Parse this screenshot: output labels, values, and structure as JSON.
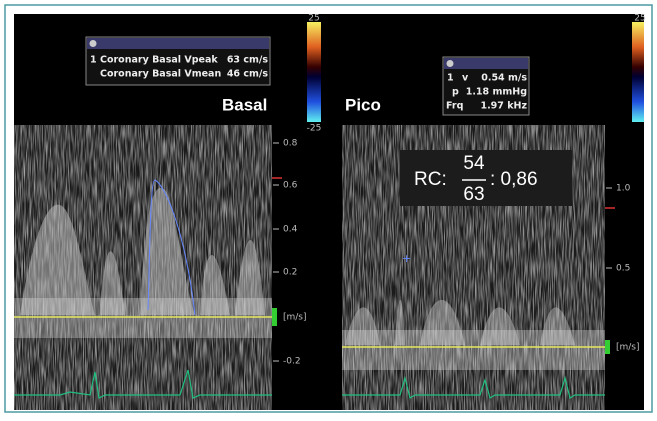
{
  "left": {
    "label": "Basal",
    "colorbar_top": "25",
    "colorbar_bottom": "-25",
    "info": {
      "index": "1",
      "rows": [
        {
          "label": "Coronary Basal Vpeak",
          "value": "63 cm/s"
        },
        {
          "label": "Coronary Basal Vmean",
          "value": "46 cm/s"
        }
      ]
    },
    "ticks": [
      "0.8",
      "0.6",
      "0.4",
      "0.2",
      "-0.2"
    ],
    "unit": "[m/s]"
  },
  "right": {
    "label": "Pico",
    "colorbar_top": "25",
    "info": {
      "index": "1",
      "rows": [
        {
          "label": "v",
          "value": "0.54 m/s"
        },
        {
          "label": "p",
          "value": "1.18 mmHg"
        },
        {
          "label": "Frq",
          "value": "1.97 kHz"
        }
      ]
    },
    "ticks": [
      "1.0",
      "0.5"
    ],
    "unit": "[m/s]"
  },
  "rc": {
    "label": "RC:",
    "numerator": "54",
    "denominator": "63",
    "result": ": 0,86"
  }
}
